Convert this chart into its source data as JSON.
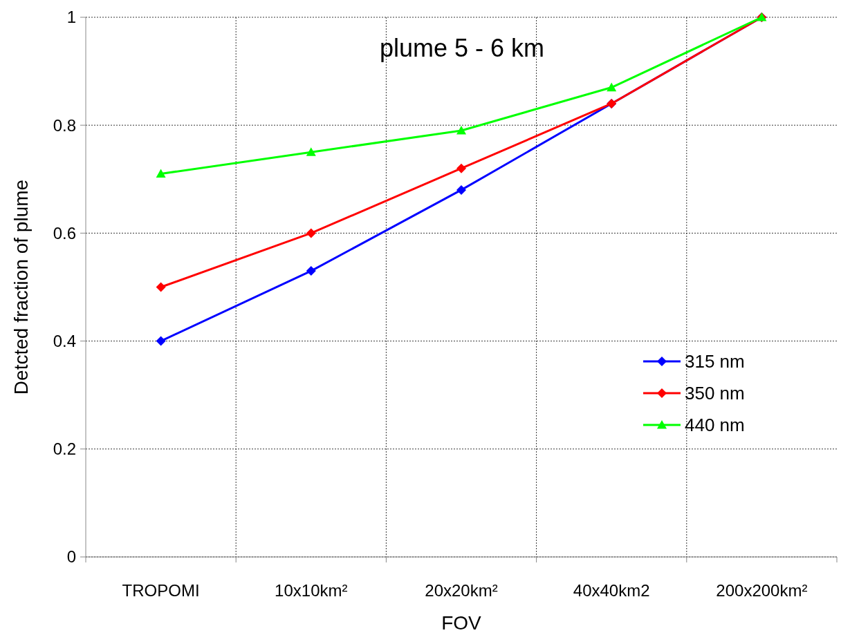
{
  "chart_data": {
    "type": "line",
    "title": "plume 5 - 6 km",
    "xlabel": "FOV",
    "ylabel": "Detcted fraction of plume",
    "categories": [
      "TROPOMI",
      "10x10km²",
      "20x20km²",
      "40x40km2",
      "200x200km²"
    ],
    "series": [
      {
        "name": "315 nm",
        "color": "#0000ff",
        "marker": "diamond",
        "values": [
          0.4,
          0.53,
          0.68,
          0.84,
          1.0
        ]
      },
      {
        "name": "350 nm",
        "color": "#ff0000",
        "marker": "diamond",
        "values": [
          0.5,
          0.6,
          0.72,
          0.84,
          1.0
        ]
      },
      {
        "name": "440 nm",
        "color": "#00ff00",
        "marker": "triangle",
        "values": [
          0.71,
          0.75,
          0.79,
          0.87,
          1.0
        ]
      }
    ],
    "ylim": [
      0,
      1
    ],
    "yticks": [
      0,
      0.2,
      0.4,
      0.6,
      0.8,
      1
    ],
    "grid": true,
    "legend": "right",
    "line_style": "solid"
  }
}
